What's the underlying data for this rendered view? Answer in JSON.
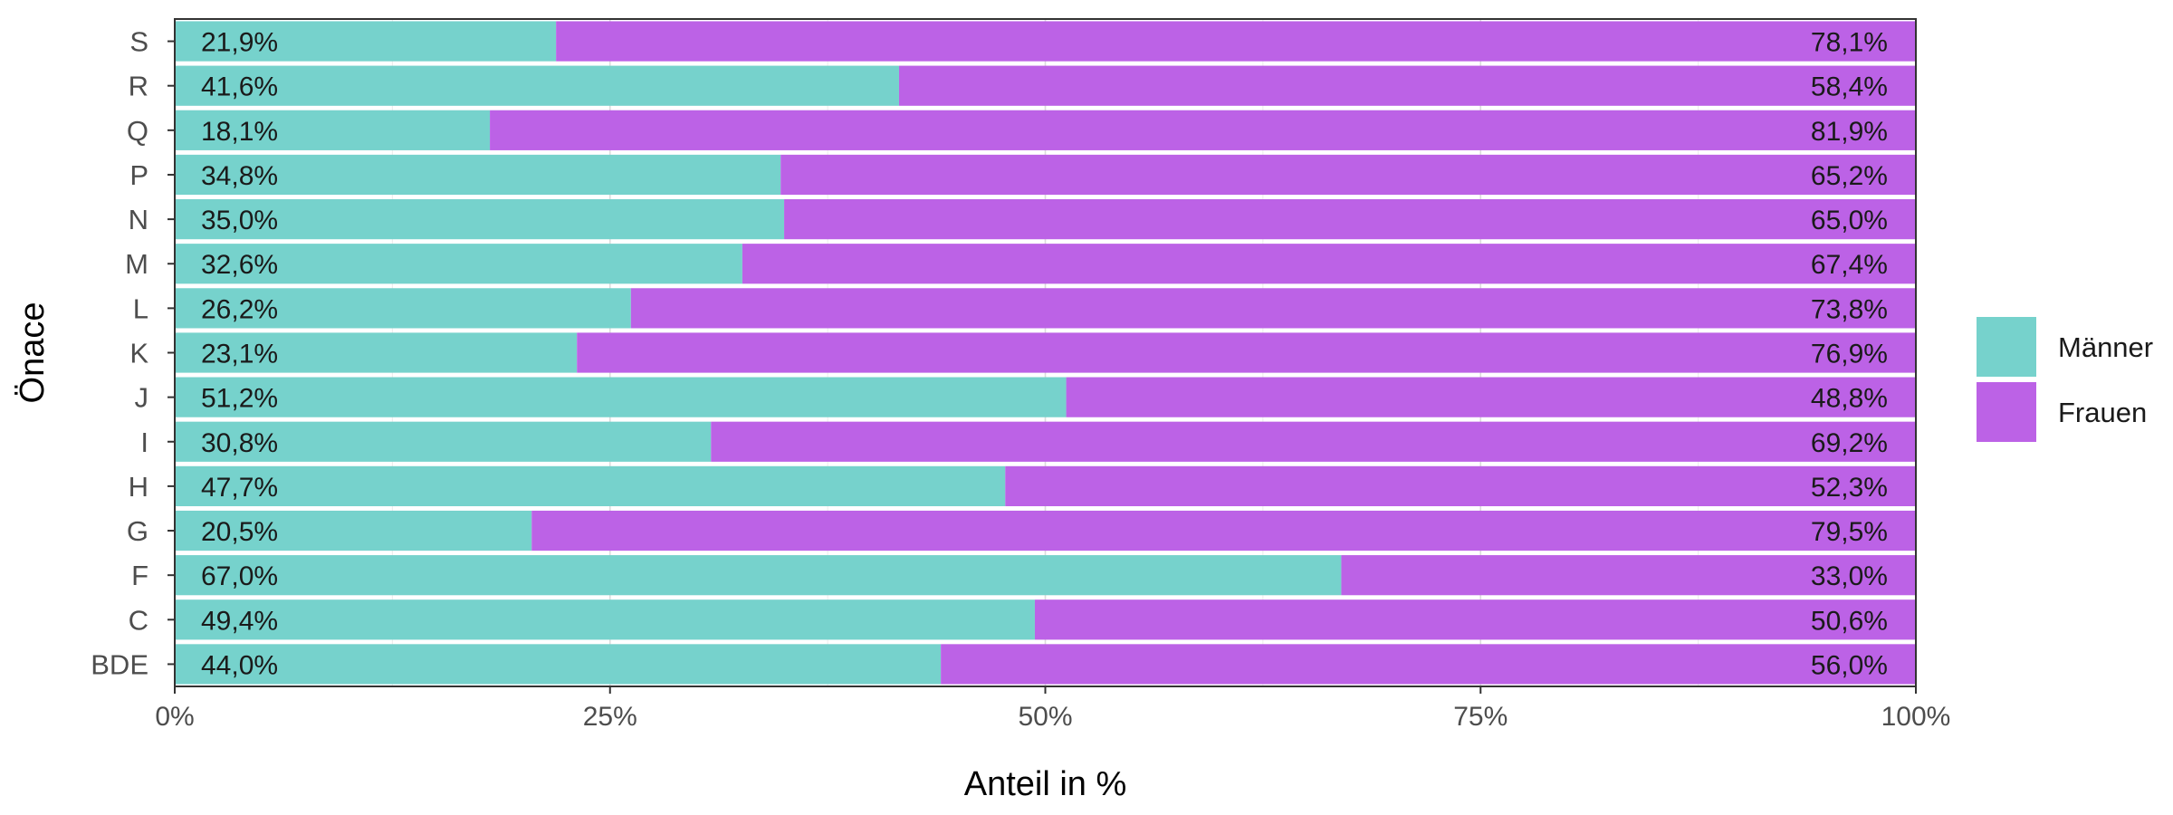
{
  "chart_data": {
    "type": "bar",
    "orientation": "horizontal",
    "stacked": true,
    "percent_stacked": true,
    "categories": [
      "S",
      "R",
      "Q",
      "P",
      "N",
      "M",
      "L",
      "K",
      "J",
      "I",
      "H",
      "G",
      "F",
      "C",
      "BDE"
    ],
    "series": [
      {
        "name": "Männer",
        "color": "#76d2cc",
        "values": [
          21.9,
          41.6,
          18.1,
          34.8,
          35.0,
          32.6,
          26.2,
          23.1,
          51.2,
          30.8,
          47.7,
          20.5,
          67.0,
          49.4,
          44.0
        ],
        "labels": [
          "21,9%",
          "41,6%",
          "18,1%",
          "34,8%",
          "35,0%",
          "32,6%",
          "26,2%",
          "23,1%",
          "51,2%",
          "30,8%",
          "47,7%",
          "20,5%",
          "67,0%",
          "49,4%",
          "44,0%"
        ]
      },
      {
        "name": "Frauen",
        "color": "#bc62e6",
        "values": [
          78.1,
          58.4,
          81.9,
          65.2,
          65.0,
          67.4,
          73.8,
          76.9,
          48.8,
          69.2,
          52.3,
          79.5,
          33.0,
          50.6,
          56.0
        ],
        "labels": [
          "78,1%",
          "58,4%",
          "81,9%",
          "65,2%",
          "65,0%",
          "67,4%",
          "73,8%",
          "76,9%",
          "48,8%",
          "69,2%",
          "52,3%",
          "79,5%",
          "33,0%",
          "50,6%",
          "56,0%"
        ]
      }
    ],
    "xlabel": "Anteil in %",
    "ylabel": "Önace",
    "xlim": [
      0,
      100
    ],
    "x_ticks": [
      0,
      25,
      50,
      75,
      100
    ],
    "x_tick_labels": [
      "0%",
      "25%",
      "50%",
      "75%",
      "100%"
    ],
    "grid": true,
    "legend": "right"
  }
}
